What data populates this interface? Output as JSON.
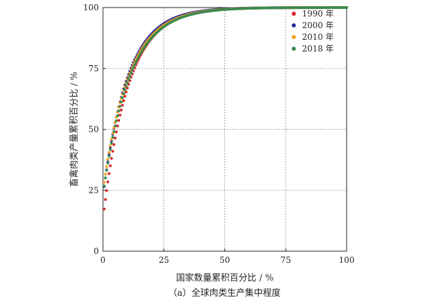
{
  "chart_data": {
    "type": "scatter",
    "title": "",
    "caption": "（a）全球肉类生产集中程度",
    "xlabel": "国家数量累积百分比 / %",
    "ylabel": "畜禽肉类产量累积百分比 / %",
    "xlim": [
      0,
      100
    ],
    "ylim": [
      0,
      100
    ],
    "xticks": [
      0,
      25,
      50,
      75,
      100
    ],
    "yticks": [
      0,
      25,
      50,
      75,
      100
    ],
    "grid": true,
    "legend_position": "top-right",
    "series": [
      {
        "name": "1990 年",
        "color": "#d62728",
        "first_y": 17.3,
        "k": 0.0965
      },
      {
        "name": "2000 年",
        "color": "#2a2a9e",
        "first_y": 26.5,
        "k": 0.0985
      },
      {
        "name": "2010 年",
        "color": "#f0a020",
        "first_y": 28.3,
        "k": 0.0935
      },
      {
        "name": "2018 年",
        "color": "#3e8a4e",
        "first_y": 26.8,
        "k": 0.091
      }
    ]
  }
}
